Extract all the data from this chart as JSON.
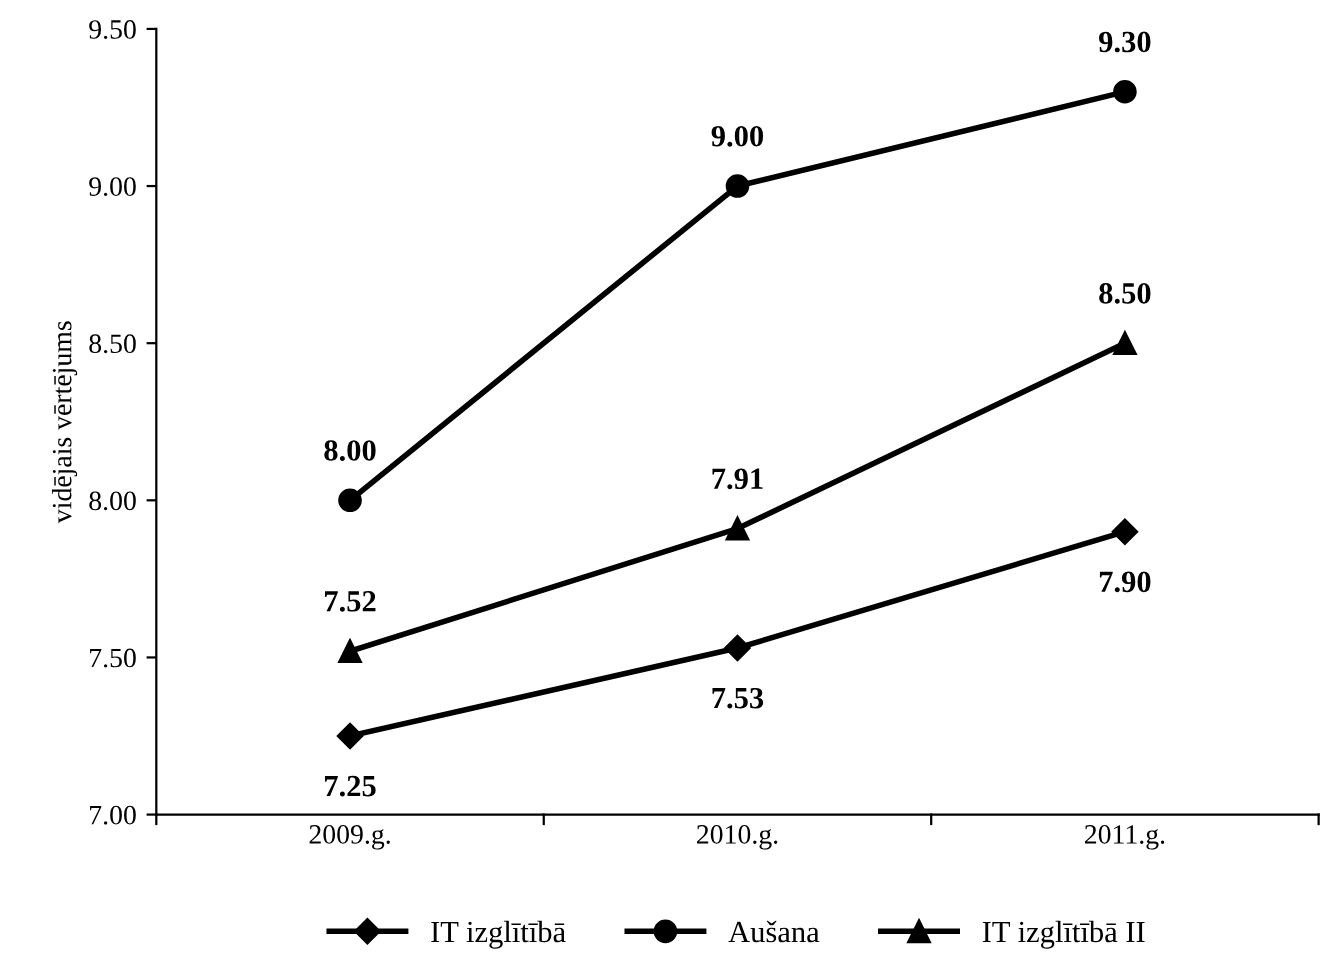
{
  "chart_data": {
    "type": "line",
    "ylabel": "vidējais vērtējums",
    "categories": [
      "2009.g.",
      "2010.g.",
      "2011.g."
    ],
    "series": [
      {
        "name": "IT izglītībā",
        "color": "#000000",
        "marker": "diamond",
        "values": [
          7.25,
          7.53,
          7.9
        ],
        "value_labels": [
          "7.25",
          "7.53",
          "7.90"
        ]
      },
      {
        "name": "Aušana",
        "color": "#000000",
        "marker": "circle",
        "values": [
          8.0,
          9.0,
          9.3
        ],
        "value_labels": [
          "8.00",
          "9.00",
          "9.30"
        ]
      },
      {
        "name": "IT izglītībā II",
        "color": "#000000",
        "marker": "triangle",
        "values": [
          7.52,
          7.91,
          8.5
        ],
        "value_labels": [
          "7.52",
          "7.91",
          "8.50"
        ]
      }
    ],
    "ylim": [
      7.0,
      9.5
    ],
    "yticks": [
      {
        "value": 7.0,
        "label": "7.00"
      },
      {
        "value": 7.5,
        "label": "7.50"
      },
      {
        "value": 8.0,
        "label": "8.00"
      },
      {
        "value": 8.5,
        "label": "8.50"
      },
      {
        "value": 9.0,
        "label": "9.00"
      },
      {
        "value": 9.5,
        "label": "9.50"
      }
    ],
    "grid": false,
    "legend": "bottom",
    "line_style": "solid"
  }
}
